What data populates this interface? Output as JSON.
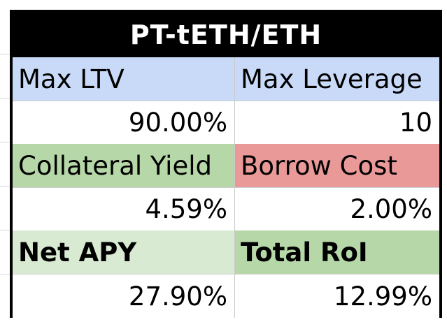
{
  "title": "PT-tETH/ETH",
  "colors": {
    "title_bg": "#000000",
    "title_text": "#ffffff",
    "blue_header": "#c9daf8",
    "green_header": "#b6d7a8",
    "red_header": "#ea9999",
    "light_green_header": "#d9ead3",
    "value_bg": "#ffffff"
  },
  "rows": [
    {
      "left": {
        "label": "Max LTV",
        "value": "90.00%"
      },
      "right": {
        "label": "Max Leverage",
        "value": "10"
      }
    },
    {
      "left": {
        "label": "Collateral Yield",
        "value": "4.59%"
      },
      "right": {
        "label": "Borrow Cost",
        "value": "2.00%"
      }
    },
    {
      "left": {
        "label": "Net APY",
        "value": "27.90%"
      },
      "right": {
        "label": "Total RoI",
        "value": "12.99%"
      }
    }
  ]
}
